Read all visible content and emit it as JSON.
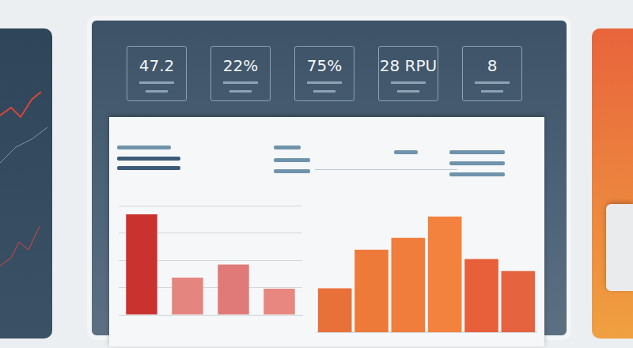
{
  "kpis": [
    {
      "value": "47.2"
    },
    {
      "value": "22%"
    },
    {
      "value": "75%"
    },
    {
      "value": "28 RPU"
    },
    {
      "value": "8"
    }
  ],
  "chart_data": [
    {
      "type": "bar",
      "categories": [
        null,
        null,
        null,
        null
      ],
      "values": [
        92,
        34,
        46,
        24
      ],
      "colors": [
        "#c9322f",
        "#e58580",
        "#e07a78",
        "#e8877f"
      ],
      "ylim": [
        0,
        100
      ],
      "yticks": [
        0,
        25,
        50,
        75,
        100
      ],
      "grid": true,
      "tick_labels": false
    },
    {
      "type": "bar",
      "categories": [
        null,
        null,
        null,
        null,
        null,
        null
      ],
      "values": [
        33,
        62,
        71,
        87,
        55,
        46
      ],
      "colors": [
        "#e8713a",
        "#ee7a3a",
        "#f07d3c",
        "#f2823d",
        "#e7603a",
        "#e5633f"
      ],
      "ylim": [
        0,
        100
      ],
      "yticks": [
        0,
        25,
        50,
        75,
        100
      ],
      "grid": false,
      "tick_labels": false
    }
  ]
}
